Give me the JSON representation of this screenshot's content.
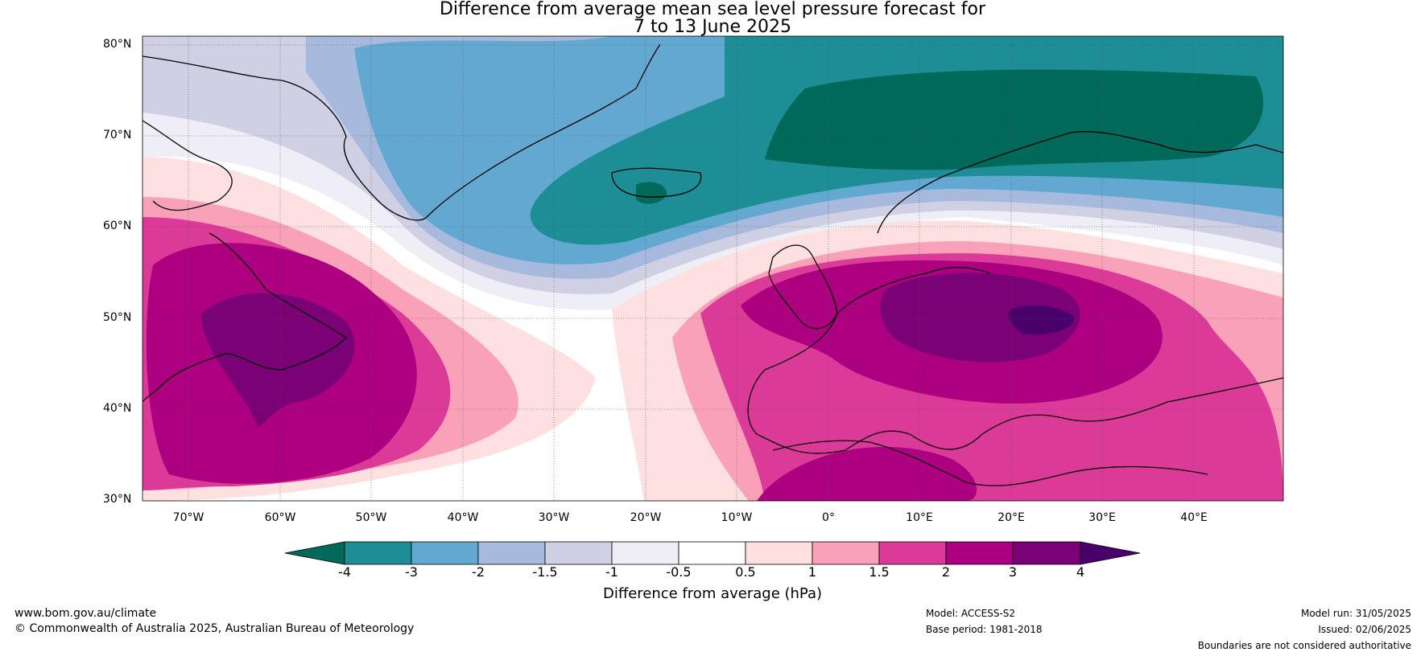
{
  "title": {
    "line1": "Difference from average mean sea level pressure forecast for",
    "line2": "7 to 13 June 2025"
  },
  "map": {
    "latitudes": [
      "80°N",
      "70°N",
      "60°N",
      "50°N",
      "40°N",
      "30°N"
    ],
    "longitudes": [
      "70°W",
      "60°W",
      "50°W",
      "40°W",
      "30°W",
      "20°W",
      "10°W",
      "0°",
      "10°E",
      "20°E",
      "30°E",
      "40°E"
    ]
  },
  "colorbar": {
    "title": "Difference from average (hPa)",
    "ticks": [
      "-4",
      "-3",
      "-2",
      "-1.5",
      "-1",
      "-0.5",
      "0.5",
      "1",
      "1.5",
      "2",
      "3",
      "4"
    ],
    "colors": [
      "#00695a",
      "#1d8d96",
      "#63a8d0",
      "#a7b9dc",
      "#cfd0e4",
      "#efedf5",
      "#ffffff",
      "#fde0df",
      "#f9a1b8",
      "#dc3a98",
      "#ad0080",
      "#7a0176",
      "#4a006b"
    ]
  },
  "footer": {
    "website": "www.bom.gov.au/climate",
    "copyright": "© Commonwealth of Australia 2025, Australian Bureau of Meteorology",
    "model": "Model: ACCESS-S2",
    "base_period": "Base period: 1981-2018",
    "model_run": "Model run: 31/05/2025",
    "issued": "Issued: 02/06/2025",
    "disclaimer": "Boundaries are not considered authoritative"
  }
}
